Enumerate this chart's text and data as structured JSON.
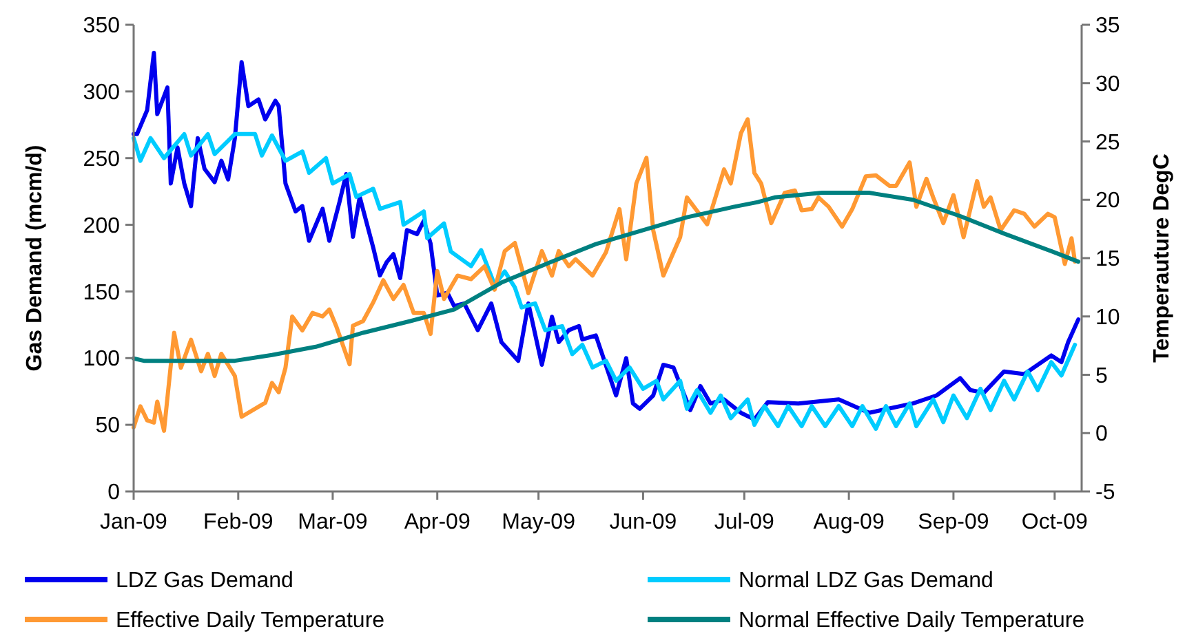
{
  "chart_data": {
    "type": "line",
    "xlabel": null,
    "ylabel": "Gas Demand (mcm/d)",
    "y2label": "Temperauture DegC",
    "xlim": [
      "2009-01-01",
      "2009-10-09"
    ],
    "xticks": [
      {
        "value": "2009-01-01",
        "label": "Jan-09"
      },
      {
        "value": "2009-02-01",
        "label": "Feb-09"
      },
      {
        "value": "2009-03-01",
        "label": "Mar-09"
      },
      {
        "value": "2009-04-01",
        "label": "Apr-09"
      },
      {
        "value": "2009-05-01",
        "label": "May-09"
      },
      {
        "value": "2009-06-01",
        "label": "Jun-09"
      },
      {
        "value": "2009-07-01",
        "label": "Jul-09"
      },
      {
        "value": "2009-08-01",
        "label": "Aug-09"
      },
      {
        "value": "2009-09-01",
        "label": "Sep-09"
      },
      {
        "value": "2009-10-01",
        "label": "Oct-09"
      }
    ],
    "ylim": [
      0,
      350
    ],
    "yticks": [
      0,
      50,
      100,
      150,
      200,
      250,
      300,
      350
    ],
    "y2lim": [
      -5,
      35
    ],
    "y2ticks": [
      -5,
      0,
      5,
      10,
      15,
      20,
      25,
      30,
      35
    ],
    "grid": false,
    "legend": "bottom",
    "marker": "none",
    "line_style": "solid",
    "series": [
      {
        "name": "LDZ Gas Demand",
        "color": "#0000ee",
        "x": [
          "2009-01-01",
          "2009-01-02",
          "2009-01-05",
          "2009-01-07",
          "2009-01-08",
          "2009-01-11",
          "2009-01-12",
          "2009-01-14",
          "2009-01-16",
          "2009-01-18",
          "2009-01-20",
          "2009-01-22",
          "2009-01-25",
          "2009-01-27",
          "2009-01-29",
          "2009-01-31",
          "2009-02-02",
          "2009-02-04",
          "2009-02-07",
          "2009-02-09",
          "2009-02-12",
          "2009-02-13",
          "2009-02-15",
          "2009-02-18",
          "2009-02-20",
          "2009-02-22",
          "2009-02-26",
          "2009-02-28",
          "2009-03-03",
          "2009-03-05",
          "2009-03-07",
          "2009-03-09",
          "2009-03-13",
          "2009-03-15",
          "2009-03-17",
          "2009-03-19",
          "2009-03-21",
          "2009-03-23",
          "2009-03-26",
          "2009-03-28",
          "2009-03-30",
          "2009-04-01",
          "2009-04-04",
          "2009-04-06",
          "2009-04-09",
          "2009-04-13",
          "2009-04-17",
          "2009-04-20",
          "2009-04-25",
          "2009-04-28",
          "2009-05-02",
          "2009-05-05",
          "2009-05-07",
          "2009-05-10",
          "2009-05-13",
          "2009-05-14",
          "2009-05-18",
          "2009-05-24",
          "2009-05-27",
          "2009-05-29",
          "2009-05-31",
          "2009-06-04",
          "2009-06-07",
          "2009-06-10",
          "2009-06-15",
          "2009-06-18",
          "2009-06-21",
          "2009-06-25",
          "2009-06-30",
          "2009-07-04",
          "2009-07-08",
          "2009-07-17",
          "2009-07-29",
          "2009-08-07",
          "2009-08-20",
          "2009-08-27",
          "2009-09-03",
          "2009-09-06",
          "2009-09-10",
          "2009-09-16",
          "2009-09-22",
          "2009-09-30",
          "2009-10-03",
          "2009-10-05",
          "2009-10-08"
        ],
        "values": [
          268,
          268,
          286,
          329,
          283,
          303,
          231,
          258,
          231,
          214,
          265,
          242,
          232,
          248,
          234,
          265,
          322,
          289,
          294,
          279,
          293,
          289,
          231,
          210,
          214,
          188,
          212,
          188,
          217,
          238,
          191,
          221,
          183,
          162,
          172,
          178,
          160,
          196,
          193,
          203,
          186,
          147,
          149,
          139,
          141,
          121,
          141,
          112,
          98,
          141,
          95,
          131,
          112,
          121,
          124,
          114,
          117,
          72,
          100,
          66,
          62,
          72,
          95,
          93,
          61,
          79,
          66,
          69,
          59,
          54,
          67,
          66,
          69,
          59,
          66,
          72,
          85,
          76,
          74,
          90,
          88,
          102,
          97,
          112,
          129
        ]
      },
      {
        "name": "Normal LDZ Gas Demand",
        "color": "#00ccff",
        "x": [
          "2009-01-01",
          "2009-01-03",
          "2009-01-06",
          "2009-01-10",
          "2009-01-16",
          "2009-01-18",
          "2009-01-23",
          "2009-01-25",
          "2009-01-31",
          "2009-02-06",
          "2009-02-08",
          "2009-02-11",
          "2009-02-15",
          "2009-02-20",
          "2009-02-22",
          "2009-02-27",
          "2009-03-01",
          "2009-03-06",
          "2009-03-08",
          "2009-03-13",
          "2009-03-15",
          "2009-03-21",
          "2009-03-22",
          "2009-03-28",
          "2009-03-29",
          "2009-04-03",
          "2009-04-05",
          "2009-04-11",
          "2009-04-14",
          "2009-04-18",
          "2009-04-21",
          "2009-04-24",
          "2009-04-26",
          "2009-04-30",
          "2009-05-03",
          "2009-05-08",
          "2009-05-11",
          "2009-05-14",
          "2009-05-17",
          "2009-05-21",
          "2009-05-24",
          "2009-05-28",
          "2009-06-01",
          "2009-06-05",
          "2009-06-07",
          "2009-06-12",
          "2009-06-14",
          "2009-06-17",
          "2009-06-21",
          "2009-06-24",
          "2009-06-27",
          "2009-07-02",
          "2009-07-04",
          "2009-07-07",
          "2009-07-11",
          "2009-07-14",
          "2009-07-18",
          "2009-07-21",
          "2009-07-25",
          "2009-07-29",
          "2009-08-02",
          "2009-08-05",
          "2009-08-09",
          "2009-08-12",
          "2009-08-15",
          "2009-08-19",
          "2009-08-21",
          "2009-08-26",
          "2009-08-29",
          "2009-09-01",
          "2009-09-05",
          "2009-09-09",
          "2009-09-12",
          "2009-09-16",
          "2009-09-19",
          "2009-09-23",
          "2009-09-26",
          "2009-09-30",
          "2009-10-03",
          "2009-10-07"
        ],
        "values": [
          265,
          248,
          265,
          250,
          268,
          252,
          268,
          253,
          268,
          268,
          252,
          267,
          248,
          255,
          239,
          250,
          231,
          238,
          221,
          227,
          212,
          217,
          200,
          210,
          190,
          201,
          180,
          169,
          181,
          155,
          165,
          153,
          138,
          141,
          121,
          124,
          103,
          110,
          93,
          98,
          83,
          93,
          77,
          83,
          69,
          83,
          62,
          76,
          59,
          72,
          55,
          69,
          50,
          64,
          49,
          64,
          49,
          64,
          49,
          64,
          49,
          64,
          47,
          64,
          49,
          66,
          49,
          69,
          52,
          72,
          55,
          77,
          61,
          83,
          69,
          90,
          76,
          97,
          87,
          110
        ]
      },
      {
        "name": "Effective Daily Temperature",
        "color": "#ff9933",
        "axis": "y2",
        "x": [
          "2009-01-01",
          "2009-01-03",
          "2009-01-05",
          "2009-01-07",
          "2009-01-08",
          "2009-01-10",
          "2009-01-13",
          "2009-01-15",
          "2009-01-18",
          "2009-01-21",
          "2009-01-23",
          "2009-01-25",
          "2009-01-27",
          "2009-01-31",
          "2009-02-02",
          "2009-02-09",
          "2009-02-11",
          "2009-02-13",
          "2009-02-15",
          "2009-02-17",
          "2009-02-20",
          "2009-02-23",
          "2009-02-26",
          "2009-02-28",
          "2009-03-02",
          "2009-03-06",
          "2009-03-07",
          "2009-03-10",
          "2009-03-13",
          "2009-03-16",
          "2009-03-19",
          "2009-03-22",
          "2009-03-25",
          "2009-03-28",
          "2009-03-30",
          "2009-04-01",
          "2009-04-03",
          "2009-04-07",
          "2009-04-11",
          "2009-04-15",
          "2009-04-18",
          "2009-04-21",
          "2009-04-24",
          "2009-04-28",
          "2009-05-02",
          "2009-05-05",
          "2009-05-07",
          "2009-05-10",
          "2009-05-12",
          "2009-05-17",
          "2009-05-21",
          "2009-05-25",
          "2009-05-27",
          "2009-05-30",
          "2009-06-02",
          "2009-06-04",
          "2009-06-07",
          "2009-06-12",
          "2009-06-14",
          "2009-06-20",
          "2009-06-25",
          "2009-06-27",
          "2009-06-30",
          "2009-07-02",
          "2009-07-04",
          "2009-07-06",
          "2009-07-09",
          "2009-07-13",
          "2009-07-16",
          "2009-07-18",
          "2009-07-21",
          "2009-07-23",
          "2009-07-26",
          "2009-07-30",
          "2009-08-02",
          "2009-08-06",
          "2009-08-09",
          "2009-08-13",
          "2009-08-15",
          "2009-08-19",
          "2009-08-21",
          "2009-08-24",
          "2009-08-26",
          "2009-08-29",
          "2009-09-01",
          "2009-09-04",
          "2009-09-08",
          "2009-09-10",
          "2009-09-12",
          "2009-09-15",
          "2009-09-19",
          "2009-09-22",
          "2009-09-25",
          "2009-09-29",
          "2009-10-01",
          "2009-10-04",
          "2009-10-06",
          "2009-10-07"
        ],
        "values": [
          0.5,
          2.3,
          1.1,
          0.9,
          2.7,
          0.2,
          8.6,
          5.6,
          8.0,
          5.3,
          6.8,
          4.9,
          6.8,
          4.9,
          1.4,
          2.6,
          4.3,
          3.5,
          5.6,
          10.0,
          8.8,
          10.3,
          10.0,
          10.6,
          9.2,
          5.9,
          9.2,
          9.6,
          11.2,
          13.1,
          11.5,
          12.7,
          10.3,
          10.3,
          8.5,
          13.9,
          11.5,
          13.5,
          13.2,
          14.3,
          12.3,
          15.6,
          16.3,
          12.0,
          15.6,
          13.5,
          15.6,
          14.3,
          14.9,
          13.5,
          15.5,
          19.2,
          14.9,
          21.4,
          23.6,
          17.4,
          13.5,
          16.8,
          20.2,
          17.9,
          22.6,
          21.4,
          25.7,
          26.9,
          22.3,
          21.4,
          18.0,
          20.6,
          20.8,
          19.1,
          19.2,
          20.2,
          19.4,
          17.7,
          19.2,
          22.0,
          22.1,
          21.2,
          21.2,
          23.2,
          19.4,
          21.8,
          20.2,
          18.0,
          20.4,
          16.8,
          21.6,
          19.4,
          20.2,
          17.4,
          19.1,
          18.8,
          17.7,
          18.8,
          18.5,
          14.5,
          16.7,
          14.7
        ]
      },
      {
        "name": "Normal Effective Daily Temperature",
        "color": "#008080",
        "axis": "y2",
        "x": [
          "2009-01-01",
          "2009-01-04",
          "2009-01-31",
          "2009-02-11",
          "2009-02-24",
          "2009-03-10",
          "2009-03-24",
          "2009-04-06",
          "2009-04-20",
          "2009-05-05",
          "2009-05-18",
          "2009-06-01",
          "2009-06-14",
          "2009-06-28",
          "2009-07-05",
          "2009-07-10",
          "2009-07-24",
          "2009-08-07",
          "2009-08-20",
          "2009-09-03",
          "2009-09-16",
          "2009-09-30",
          "2009-10-08"
        ],
        "values": [
          6.4,
          6.2,
          6.2,
          6.7,
          7.4,
          8.6,
          9.6,
          10.6,
          12.9,
          14.7,
          16.2,
          17.4,
          18.5,
          19.4,
          19.8,
          20.2,
          20.6,
          20.6,
          20.0,
          18.6,
          17.1,
          15.6,
          14.7
        ]
      }
    ]
  }
}
